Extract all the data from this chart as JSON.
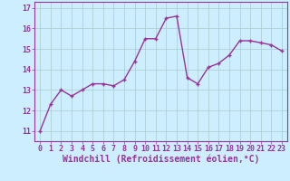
{
  "x": [
    0,
    1,
    2,
    3,
    4,
    5,
    6,
    7,
    8,
    9,
    10,
    11,
    12,
    13,
    14,
    15,
    16,
    17,
    18,
    19,
    20,
    21,
    22,
    23
  ],
  "y": [
    11.0,
    12.3,
    13.0,
    12.7,
    13.0,
    13.3,
    13.3,
    13.2,
    13.5,
    14.4,
    15.5,
    15.5,
    16.5,
    16.6,
    13.6,
    13.3,
    14.1,
    14.3,
    14.7,
    15.4,
    15.4,
    15.3,
    15.2,
    14.9
  ],
  "line_color": "#993399",
  "marker": "+",
  "marker_size": 3,
  "linewidth": 1.0,
  "bg_color": "#cceeff",
  "grid_color": "#aacccc",
  "xlabel": "Windchill (Refroidissement éolien,°C)",
  "ylabel": "",
  "ylim": [
    10.5,
    17.3
  ],
  "yticks": [
    11,
    12,
    13,
    14,
    15,
    16,
    17
  ],
  "xticks": [
    0,
    1,
    2,
    3,
    4,
    5,
    6,
    7,
    8,
    9,
    10,
    11,
    12,
    13,
    14,
    15,
    16,
    17,
    18,
    19,
    20,
    21,
    22,
    23
  ],
  "tick_color": "#993399",
  "tick_label_color": "#993399",
  "label_fontsize": 6.5,
  "tick_fontsize": 6.0,
  "xlabel_fontsize": 7.0
}
